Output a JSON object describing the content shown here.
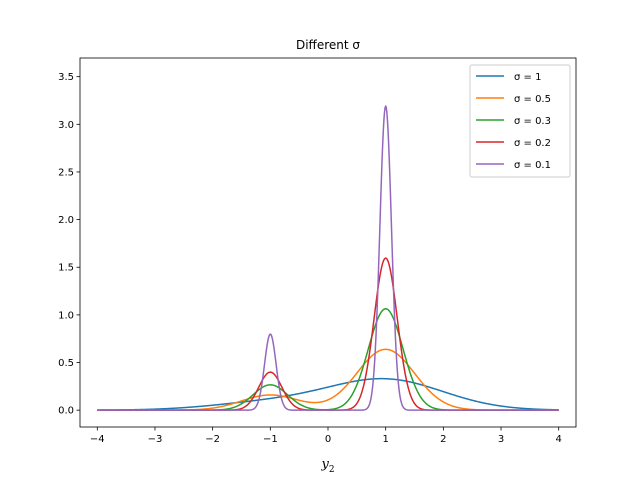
{
  "chart_data": {
    "type": "line",
    "title": "Different σ",
    "xlabel": "y",
    "xlabel_sub": "2",
    "ylabel": "",
    "xlim": [
      -4.3,
      4.3
    ],
    "ylim": [
      -0.1767,
      3.696
    ],
    "xticks": [
      -4,
      -3,
      -2,
      -1,
      0,
      1,
      2,
      3,
      4
    ],
    "xtick_labels": [
      "−4",
      "−3",
      "−2",
      "−1",
      "0",
      "1",
      "2",
      "3",
      "4"
    ],
    "yticks": [
      0.0,
      0.5,
      1.0,
      1.5,
      2.0,
      2.5,
      3.0,
      3.5
    ],
    "ytick_labels": [
      "0.0",
      "0.5",
      "1.0",
      "1.5",
      "2.0",
      "2.5",
      "3.0",
      "3.5"
    ],
    "grid": false,
    "legend_position": "top-right",
    "mixture": {
      "centers": [
        -1,
        1
      ],
      "weights": [
        0.2,
        0.8
      ],
      "x_range": [
        -4,
        4
      ]
    },
    "series": [
      {
        "name": "σ = 1",
        "sigma": 1.0,
        "color": "#1f77b4"
      },
      {
        "name": "σ = 0.5",
        "sigma": 0.5,
        "color": "#ff7f0e"
      },
      {
        "name": "σ = 0.3",
        "sigma": 0.3,
        "color": "#2ca02c"
      },
      {
        "name": "σ = 0.2",
        "sigma": 0.2,
        "color": "#d62728"
      },
      {
        "name": "σ = 0.1",
        "sigma": 0.1,
        "color": "#9467bd"
      }
    ]
  }
}
